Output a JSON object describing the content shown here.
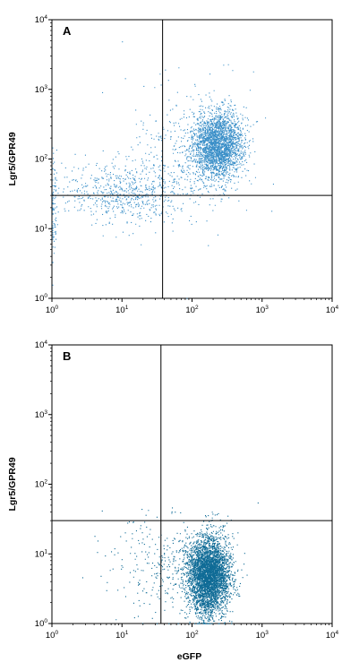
{
  "chart_data": [
    {
      "type": "scatter",
      "panel_label": "A",
      "xlabel": "",
      "ylabel": "Lgr5/GPR49",
      "xscale": "log",
      "yscale": "log",
      "xlim": [
        1,
        10000
      ],
      "ylim": [
        1,
        10000
      ],
      "xticks": [
        "10^0",
        "10^1",
        "10^2",
        "10^3",
        "10^4"
      ],
      "yticks": [
        "10^0",
        "10^1",
        "10^2",
        "10^3",
        "10^4"
      ],
      "gate": {
        "x": 38,
        "y": 30
      },
      "point_color": "#3a8fc8",
      "populations": [
        {
          "center": [
            230,
            160
          ],
          "spread_log10": [
            0.18,
            0.24
          ],
          "count": 2600
        },
        {
          "center": [
            12,
            34
          ],
          "spread_log10": [
            0.45,
            0.22
          ],
          "count": 650
        },
        {
          "center": [
            80,
            120
          ],
          "spread_log10": [
            0.45,
            0.55
          ],
          "count": 300
        },
        {
          "center": [
            1.05,
            20
          ],
          "spread_log10": [
            0.03,
            0.35
          ],
          "count": 90
        }
      ]
    },
    {
      "type": "scatter",
      "panel_label": "B",
      "xlabel": "eGFP",
      "ylabel": "Lgr5/GPR49",
      "xscale": "log",
      "yscale": "log",
      "xlim": [
        1,
        10000
      ],
      "ylim": [
        1,
        10000
      ],
      "xticks": [
        "10^0",
        "10^1",
        "10^2",
        "10^3",
        "10^4"
      ],
      "yticks": [
        "10^0",
        "10^1",
        "10^2",
        "10^3",
        "10^4"
      ],
      "gate": {
        "x": 36,
        "y": 30
      },
      "point_color": "#0f6b96",
      "populations": [
        {
          "center": [
            170,
            5
          ],
          "spread_log10": [
            0.15,
            0.28
          ],
          "count": 4200
        },
        {
          "center": [
            40,
            7
          ],
          "spread_log10": [
            0.4,
            0.35
          ],
          "count": 300
        }
      ]
    }
  ]
}
